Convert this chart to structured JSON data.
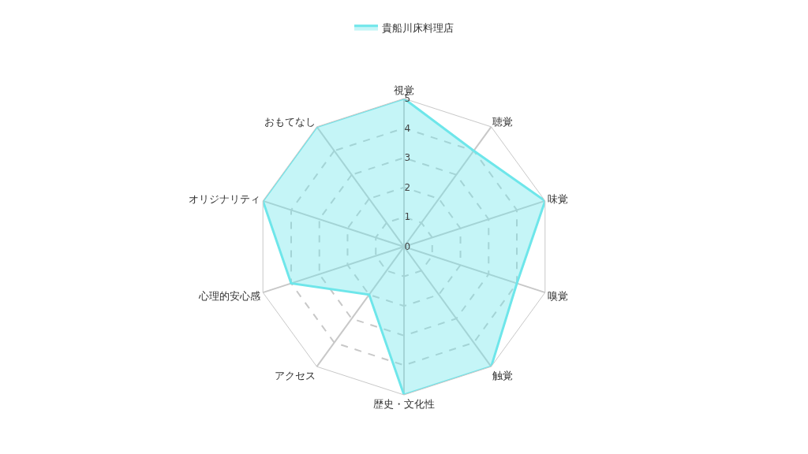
{
  "chart_data": {
    "type": "radar",
    "categories": [
      "視覚",
      "聴覚",
      "味覚",
      "嗅覚",
      "触覚",
      "歴史・文化性",
      "アクセス",
      "心理的安心感",
      "オリジナリティ",
      "おもてなし"
    ],
    "series": [
      {
        "name": "貴船川床料理店",
        "color": "#6ee6ea",
        "values": [
          5,
          4,
          5,
          4,
          5,
          5,
          2,
          4,
          5,
          5
        ]
      }
    ],
    "ylim": [
      0,
      5
    ],
    "yticks": [
      0,
      1,
      2,
      3,
      4,
      5
    ],
    "grid": true,
    "legend": "top",
    "marker": "none"
  }
}
